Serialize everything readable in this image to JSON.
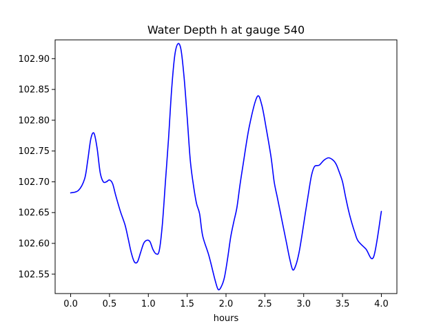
{
  "chart_data": {
    "type": "line",
    "title": "Water Depth h at gauge 540",
    "xlabel": "hours",
    "ylabel": "",
    "xlim": [
      -0.2,
      4.2
    ],
    "ylim": [
      102.5185,
      102.9305
    ],
    "x_ticks": [
      {
        "value": 0.0,
        "label": "0.0"
      },
      {
        "value": 0.5,
        "label": "0.5"
      },
      {
        "value": 1.0,
        "label": "1.0"
      },
      {
        "value": 1.5,
        "label": "1.5"
      },
      {
        "value": 2.0,
        "label": "2.0"
      },
      {
        "value": 2.5,
        "label": "2.5"
      },
      {
        "value": 3.0,
        "label": "3.0"
      },
      {
        "value": 3.5,
        "label": "3.5"
      },
      {
        "value": 4.0,
        "label": "4.0"
      }
    ],
    "y_ticks": [
      {
        "value": 102.55,
        "label": "102.55"
      },
      {
        "value": 102.6,
        "label": "102.60"
      },
      {
        "value": 102.65,
        "label": "102.65"
      },
      {
        "value": 102.7,
        "label": "102.70"
      },
      {
        "value": 102.75,
        "label": "102.75"
      },
      {
        "value": 102.8,
        "label": "102.80"
      },
      {
        "value": 102.85,
        "label": "102.85"
      },
      {
        "value": 102.9,
        "label": "102.90"
      }
    ],
    "grid": false,
    "series": [
      {
        "color": "#0000ff",
        "x": [
          0.0,
          0.1,
          0.18,
          0.22,
          0.26,
          0.3,
          0.34,
          0.38,
          0.42,
          0.46,
          0.5,
          0.54,
          0.58,
          0.64,
          0.7,
          0.74,
          0.78,
          0.82,
          0.86,
          0.9,
          0.94,
          0.98,
          1.02,
          1.06,
          1.1,
          1.14,
          1.18,
          1.22,
          1.26,
          1.3,
          1.34,
          1.38,
          1.42,
          1.46,
          1.5,
          1.54,
          1.58,
          1.62,
          1.66,
          1.7,
          1.78,
          1.86,
          1.9,
          1.94,
          1.98,
          2.02,
          2.06,
          2.1,
          2.14,
          2.18,
          2.22,
          2.3,
          2.4,
          2.46,
          2.52,
          2.58,
          2.62,
          2.66,
          2.7,
          2.74,
          2.78,
          2.82,
          2.86,
          2.9,
          2.94,
          2.98,
          3.02,
          3.06,
          3.1,
          3.14,
          3.2,
          3.26,
          3.32,
          3.38,
          3.42,
          3.46,
          3.5,
          3.54,
          3.58,
          3.62,
          3.66,
          3.7,
          3.8,
          3.9,
          4.0
        ],
        "y": [
          102.682,
          102.686,
          102.705,
          102.735,
          102.77,
          102.779,
          102.755,
          102.715,
          102.7,
          102.7,
          102.703,
          102.697,
          102.678,
          102.652,
          102.63,
          102.608,
          102.585,
          102.57,
          102.57,
          102.585,
          102.6,
          102.605,
          102.603,
          102.59,
          102.583,
          102.588,
          102.63,
          102.7,
          102.77,
          102.85,
          102.905,
          102.924,
          102.915,
          102.87,
          102.805,
          102.735,
          102.695,
          102.665,
          102.648,
          102.612,
          102.58,
          102.54,
          102.525,
          102.53,
          102.545,
          102.575,
          102.61,
          102.635,
          102.658,
          102.695,
          102.728,
          102.79,
          102.838,
          102.825,
          102.785,
          102.74,
          102.7,
          102.675,
          102.65,
          102.625,
          102.6,
          102.575,
          102.557,
          102.565,
          102.585,
          102.615,
          102.648,
          102.68,
          102.71,
          102.725,
          102.727,
          102.735,
          102.739,
          102.735,
          102.728,
          102.715,
          102.7,
          102.675,
          102.652,
          102.633,
          102.617,
          102.604,
          102.591,
          102.578,
          102.652
        ]
      }
    ]
  }
}
